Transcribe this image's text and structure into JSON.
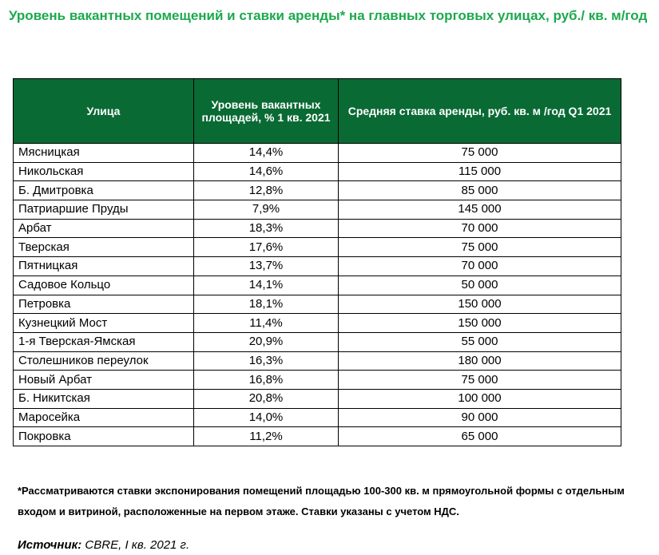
{
  "title": "Уровень вакантных помещений и ставки аренды* на главных торговых улицах, руб./ кв. м/год",
  "table": {
    "headers": [
      "Улица",
      "Уровень вакантных площадей, % 1 кв. 2021",
      "Средняя ставка аренды, руб. кв. м /год Q1 2021"
    ],
    "header_color": "#0a6a34",
    "rows": [
      [
        "Мясницкая",
        "14,4%",
        "75 000"
      ],
      [
        "Никольская",
        "14,6%",
        "115 000"
      ],
      [
        "Б. Дмитровка",
        "12,8%",
        "85 000"
      ],
      [
        "Патриаршие Пруды",
        "7,9%",
        "145 000"
      ],
      [
        "Арбат",
        "18,3%",
        "70 000"
      ],
      [
        "Тверская",
        "17,6%",
        "75 000"
      ],
      [
        "Пятницкая",
        "13,7%",
        "70 000"
      ],
      [
        "Садовое Кольцо",
        "14,1%",
        "50 000"
      ],
      [
        "Петровка",
        "18,1%",
        "150 000"
      ],
      [
        "Кузнецкий Мост",
        "11,4%",
        "150 000"
      ],
      [
        "1-я Тверская-Ямская",
        "20,9%",
        "55 000"
      ],
      [
        "Столешников переулок",
        "16,3%",
        "180 000"
      ],
      [
        "Новый Арбат",
        "16,8%",
        "75 000"
      ],
      [
        "Б. Никитская",
        "20,8%",
        "100 000"
      ],
      [
        "Маросейка",
        "14,0%",
        "90 000"
      ],
      [
        "Покровка",
        "11,2%",
        "65 000"
      ]
    ]
  },
  "footnote": "*Рассматриваются ставки экспонирования помещений площадью 100-300 кв. м прямоугольной формы с отдельным входом и витриной, расположенные на первом этаже. Ставки указаны с учетом НДС.",
  "source": {
    "label": "Источник:",
    "text": " CBRE, I кв. 2021 г."
  },
  "colors": {
    "title": "#1ca94d",
    "header_bg": "#0a6a34"
  }
}
